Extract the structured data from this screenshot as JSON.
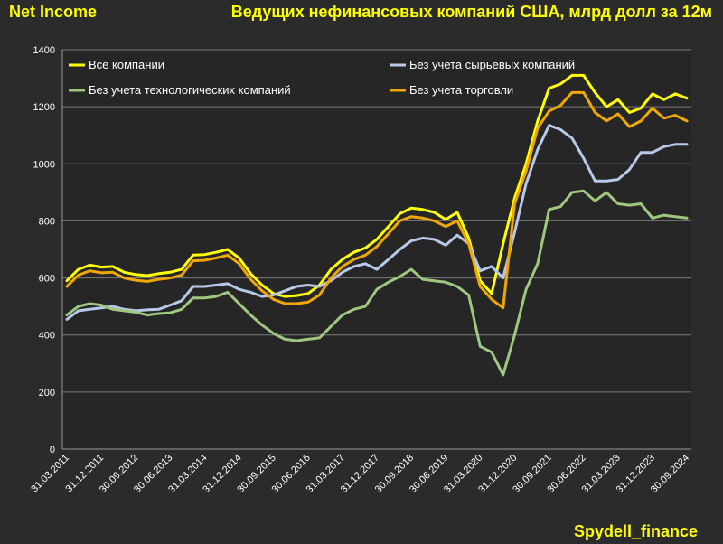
{
  "header": {
    "left_title": "Net Income",
    "right_title": "Ведущих нефинансовых компаний США, млрд долл за 12м"
  },
  "footer": {
    "credit": "Spydell_finance"
  },
  "chart_data": {
    "type": "line",
    "title": "Ведущих нефинансовых компаний США, млрд долл за 12м",
    "xlabel": "",
    "ylabel": "",
    "ylim": [
      0,
      1400
    ],
    "yticks": [
      0,
      200,
      400,
      600,
      800,
      1000,
      1200,
      1400
    ],
    "grid": true,
    "legend_position": "top",
    "xticks": [
      "31.03.2011",
      "31.12.2011",
      "30.09.2012",
      "30.06.2013",
      "31.03.2014",
      "31.12.2014",
      "30.09.2015",
      "30.06.2016",
      "31.03.2017",
      "31.12.2017",
      "30.09.2018",
      "30.06.2019",
      "31.03.2020",
      "31.12.2020",
      "30.09.2021",
      "30.06.2022",
      "31.03.2023",
      "31.12.2023",
      "30.09.2024"
    ],
    "x": [
      "2011Q1",
      "2011Q2",
      "2011Q3",
      "2011Q4",
      "2012Q1",
      "2012Q2",
      "2012Q3",
      "2012Q4",
      "2013Q1",
      "2013Q2",
      "2013Q3",
      "2013Q4",
      "2014Q1",
      "2014Q2",
      "2014Q3",
      "2014Q4",
      "2015Q1",
      "2015Q2",
      "2015Q3",
      "2015Q4",
      "2016Q1",
      "2016Q2",
      "2016Q3",
      "2016Q4",
      "2017Q1",
      "2017Q2",
      "2017Q3",
      "2017Q4",
      "2018Q1",
      "2018Q2",
      "2018Q3",
      "2018Q4",
      "2019Q1",
      "2019Q2",
      "2019Q3",
      "2019Q4",
      "2020Q1",
      "2020Q2",
      "2020Q3",
      "2020Q4",
      "2021Q1",
      "2021Q2",
      "2021Q3",
      "2021Q4",
      "2022Q1",
      "2022Q2",
      "2022Q3",
      "2022Q4",
      "2023Q1",
      "2023Q2",
      "2023Q3",
      "2023Q4",
      "2024Q1",
      "2024Q2",
      "2024Q3"
    ],
    "series": [
      {
        "name": "Все компании",
        "color": "#ffff00",
        "values": [
          590,
          630,
          645,
          638,
          640,
          620,
          612,
          608,
          615,
          620,
          630,
          680,
          682,
          690,
          700,
          670,
          615,
          575,
          545,
          535,
          538,
          545,
          575,
          630,
          665,
          690,
          705,
          735,
          780,
          825,
          845,
          840,
          830,
          805,
          830,
          740,
          590,
          545,
          720,
          880,
          1000,
          1150,
          1265,
          1280,
          1310,
          1310,
          1250,
          1200,
          1225,
          1180,
          1195,
          1245,
          1225,
          1245,
          1230
        ]
      },
      {
        "name": "Без учета сырьевых компаний",
        "color": "#b8c8e8",
        "values": [
          455,
          485,
          490,
          495,
          500,
          490,
          485,
          488,
          490,
          505,
          520,
          570,
          570,
          575,
          580,
          560,
          550,
          535,
          540,
          555,
          570,
          575,
          570,
          590,
          620,
          640,
          650,
          630,
          665,
          700,
          730,
          740,
          735,
          715,
          750,
          720,
          625,
          640,
          600,
          760,
          930,
          1050,
          1135,
          1120,
          1090,
          1020,
          940,
          940,
          945,
          980,
          1040,
          1040,
          1060,
          1068,
          1068
        ]
      },
      {
        "name": "Без учета технологических компаний",
        "color": "#9fc77f",
        "values": [
          470,
          500,
          510,
          505,
          490,
          485,
          480,
          470,
          475,
          478,
          490,
          530,
          530,
          535,
          550,
          510,
          470,
          435,
          405,
          385,
          380,
          385,
          390,
          430,
          470,
          490,
          500,
          560,
          585,
          605,
          630,
          595,
          590,
          585,
          570,
          540,
          360,
          340,
          260,
          400,
          560,
          650,
          840,
          850,
          900,
          905,
          870,
          900,
          860,
          855,
          860,
          810,
          820,
          815,
          810
        ]
      },
      {
        "name": "Без учета торговли",
        "color": "#f0a800",
        "values": [
          570,
          610,
          625,
          618,
          620,
          600,
          592,
          588,
          595,
          600,
          610,
          660,
          662,
          670,
          680,
          650,
          595,
          555,
          525,
          510,
          510,
          515,
          540,
          600,
          640,
          665,
          680,
          710,
          755,
          800,
          815,
          810,
          800,
          780,
          800,
          720,
          570,
          525,
          495,
          860,
          975,
          1125,
          1185,
          1205,
          1250,
          1250,
          1180,
          1150,
          1175,
          1130,
          1150,
          1195,
          1160,
          1170,
          1150
        ]
      }
    ]
  }
}
